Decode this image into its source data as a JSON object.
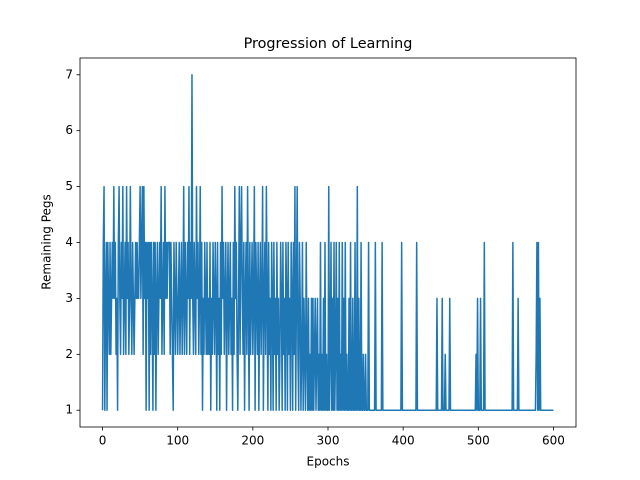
{
  "chart_data": {
    "type": "line",
    "title": "Progression of Learning",
    "x_label": "Epochs",
    "y_label": "Remaining Pegs",
    "xlim": [
      -30,
      630
    ],
    "ylim": [
      0.7,
      7.3
    ],
    "xticks": [
      0,
      100,
      200,
      300,
      400,
      500,
      600
    ],
    "yticks": [
      1,
      2,
      3,
      4,
      5,
      6,
      7
    ],
    "x": [
      0,
      1,
      2,
      3,
      4,
      5,
      6,
      7,
      8,
      9,
      10,
      11,
      12,
      13,
      14,
      15,
      16,
      17,
      18,
      19,
      20,
      21,
      22,
      23,
      24,
      25,
      26,
      27,
      28,
      29,
      30,
      31,
      32,
      33,
      34,
      35,
      36,
      37,
      38,
      39,
      40,
      41,
      42,
      43,
      44,
      45,
      46,
      47,
      48,
      49,
      50,
      51,
      52,
      53,
      54,
      55,
      56,
      57,
      58,
      59,
      60,
      61,
      62,
      63,
      64,
      65,
      66,
      67,
      68,
      69,
      70,
      71,
      72,
      73,
      74,
      75,
      76,
      77,
      78,
      79,
      80,
      81,
      82,
      83,
      84,
      85,
      86,
      87,
      88,
      89,
      90,
      91,
      92,
      93,
      94,
      95,
      96,
      97,
      98,
      99,
      100,
      101,
      102,
      103,
      104,
      105,
      106,
      107,
      108,
      109,
      110,
      111,
      112,
      113,
      114,
      115,
      116,
      117,
      118,
      119,
      120,
      121,
      122,
      123,
      124,
      125,
      126,
      127,
      128,
      129,
      130,
      131,
      132,
      133,
      134,
      135,
      136,
      137,
      138,
      139,
      140,
      141,
      142,
      143,
      144,
      145,
      146,
      147,
      148,
      149,
      150,
      151,
      152,
      153,
      154,
      155,
      156,
      157,
      158,
      159,
      160,
      161,
      162,
      163,
      164,
      165,
      166,
      167,
      168,
      169,
      170,
      171,
      172,
      173,
      174,
      175,
      176,
      177,
      178,
      179,
      180,
      181,
      182,
      183,
      184,
      185,
      186,
      187,
      188,
      189,
      190,
      191,
      192,
      193,
      194,
      195,
      196,
      197,
      198,
      199,
      200,
      201,
      202,
      203,
      204,
      205,
      206,
      207,
      208,
      209,
      210,
      211,
      212,
      213,
      214,
      215,
      216,
      217,
      218,
      219,
      220,
      221,
      222,
      223,
      224,
      225,
      226,
      227,
      228,
      229,
      230,
      231,
      232,
      233,
      234,
      235,
      236,
      237,
      238,
      239,
      240,
      241,
      242,
      243,
      244,
      245,
      246,
      247,
      248,
      249,
      250,
      251,
      252,
      253,
      254,
      255,
      256,
      257,
      258,
      259,
      260,
      261,
      262,
      263,
      264,
      265,
      266,
      267,
      268,
      269,
      270,
      271,
      272,
      273,
      274,
      275,
      276,
      277,
      278,
      279,
      280,
      281,
      282,
      283,
      284,
      285,
      286,
      287,
      288,
      289,
      290,
      291,
      292,
      293,
      294,
      295,
      296,
      297,
      298,
      299,
      300,
      301,
      302,
      303,
      304,
      305,
      306,
      307,
      308,
      309,
      310,
      311,
      312,
      313,
      314,
      315,
      316,
      317,
      318,
      319,
      320,
      321,
      322,
      323,
      324,
      325,
      326,
      327,
      328,
      329,
      330,
      331,
      332,
      333,
      334,
      335,
      336,
      337,
      338,
      339,
      340,
      341,
      342,
      343,
      344,
      345,
      346,
      347,
      348,
      349,
      350,
      351,
      352,
      353,
      354,
      355,
      356,
      357,
      358,
      359,
      360,
      361,
      362,
      363,
      364,
      365,
      366,
      367,
      368,
      369,
      370,
      371,
      372,
      373,
      374,
      375,
      376,
      377,
      378,
      379,
      380,
      381,
      382,
      383,
      384,
      385,
      386,
      387,
      388,
      389,
      390,
      391,
      392,
      393,
      394,
      395,
      396,
      397,
      398,
      399,
      400,
      401,
      402,
      403,
      404,
      405,
      406,
      407,
      408,
      409,
      410,
      411,
      412,
      413,
      414,
      415,
      416,
      417,
      418,
      419,
      420,
      421,
      422,
      423,
      424,
      425,
      426,
      427,
      428,
      429,
      430,
      431,
      432,
      433,
      434,
      435,
      436,
      437,
      438,
      439,
      440,
      441,
      442,
      443,
      444,
      445,
      446,
      447,
      448,
      449,
      450,
      451,
      452,
      453,
      454,
      455,
      456,
      457,
      458,
      459,
      460,
      461,
      462,
      463,
      464,
      465,
      466,
      467,
      468,
      469,
      470,
      471,
      472,
      473,
      474,
      475,
      476,
      477,
      478,
      479,
      480,
      481,
      482,
      483,
      484,
      485,
      486,
      487,
      488,
      489,
      490,
      491,
      492,
      493,
      494,
      495,
      496,
      497,
      498,
      499,
      500,
      501,
      502,
      503,
      504,
      505,
      506,
      507,
      508,
      509,
      510,
      511,
      512,
      513,
      514,
      515,
      516,
      517,
      518,
      519,
      520,
      521,
      522,
      523,
      524,
      525,
      526,
      527,
      528,
      529,
      530,
      531,
      532,
      533,
      534,
      535,
      536,
      537,
      538,
      539,
      540,
      541,
      542,
      543,
      544,
      545,
      546,
      547,
      548,
      549,
      550,
      551,
      552,
      553,
      554,
      555,
      556,
      557,
      558,
      559,
      560,
      561,
      562,
      563,
      564,
      565,
      566,
      567,
      568,
      569,
      570,
      571,
      572,
      573,
      574,
      575,
      576,
      577,
      578,
      579,
      580,
      581,
      582,
      583,
      584,
      585,
      586,
      587,
      588,
      589,
      590,
      591,
      592,
      593,
      594,
      595,
      596,
      597,
      598,
      599,
      600
    ],
    "series": [
      {
        "color": "#1f77b4",
        "values": [
          1,
          4,
          5,
          1,
          3,
          4,
          1,
          4,
          3,
          2,
          4,
          2,
          3,
          4,
          3,
          5,
          3,
          4,
          2,
          3,
          1,
          4,
          5,
          3,
          2,
          4,
          3,
          5,
          2,
          3,
          4,
          2,
          5,
          3,
          4,
          2,
          3,
          5,
          3,
          2,
          4,
          3,
          2,
          3,
          4,
          3,
          4,
          3,
          3,
          4,
          5,
          3,
          4,
          5,
          2,
          5,
          3,
          4,
          1,
          4,
          3,
          4,
          1,
          4,
          2,
          4,
          3,
          1,
          4,
          2,
          4,
          1,
          3,
          4,
          2,
          3,
          4,
          3,
          5,
          2,
          3,
          4,
          2,
          5,
          3,
          4,
          3,
          4,
          4,
          4,
          2,
          4,
          3,
          2,
          1,
          4,
          3,
          2,
          4,
          3,
          2,
          3,
          4,
          2,
          3,
          4,
          2,
          3,
          5,
          2,
          4,
          3,
          2,
          4,
          3,
          5,
          2,
          4,
          3,
          7,
          3,
          2,
          4,
          3,
          2,
          5,
          3,
          4,
          2,
          3,
          5,
          2,
          4,
          1,
          3,
          2,
          4,
          3,
          2,
          4,
          2,
          3,
          2,
          4,
          1,
          3,
          2,
          4,
          3,
          2,
          4,
          3,
          1,
          4,
          2,
          3,
          1,
          4,
          2,
          5,
          3,
          4,
          2,
          3,
          4,
          1,
          3,
          4,
          2,
          3,
          4,
          2,
          3,
          1,
          4,
          2,
          5,
          3,
          4,
          2,
          1,
          3,
          5,
          2,
          4,
          5,
          3,
          2,
          4,
          1,
          3,
          4,
          2,
          5,
          3,
          1,
          4,
          2,
          3,
          4,
          2,
          3,
          5,
          1,
          4,
          3,
          2,
          4,
          1,
          3,
          4,
          2,
          3,
          5,
          1,
          3,
          4,
          2,
          5,
          3,
          1,
          4,
          2,
          3,
          1,
          4,
          3,
          1,
          4,
          2,
          3,
          1,
          4,
          2,
          3,
          1,
          2,
          4,
          3,
          1,
          4,
          2,
          3,
          1,
          4,
          3,
          1,
          4,
          2,
          3,
          1,
          4,
          3,
          1,
          4,
          2,
          5,
          1,
          3,
          5,
          2,
          1,
          4,
          3,
          1,
          2,
          4,
          1,
          3,
          2,
          1,
          4,
          2,
          1,
          3,
          1,
          2,
          1,
          3,
          1,
          3,
          1,
          2,
          3,
          1,
          2,
          3,
          1,
          2,
          1,
          4,
          1,
          2,
          1,
          3,
          1,
          4,
          1,
          2,
          1,
          1,
          5,
          1,
          2,
          4,
          1,
          3,
          1,
          4,
          1,
          2,
          4,
          1,
          3,
          1,
          4,
          1,
          2,
          1,
          4,
          1,
          3,
          1,
          4,
          1,
          2,
          1,
          1,
          3,
          1,
          4,
          1,
          1,
          3,
          1,
          1,
          4,
          1,
          1,
          5,
          1,
          3,
          1,
          1,
          4,
          1,
          1,
          2,
          1,
          1,
          2,
          1,
          1,
          1,
          4,
          1,
          1,
          1,
          1,
          1,
          1,
          1,
          1,
          4,
          1,
          1,
          1,
          1,
          1,
          1,
          1,
          1,
          4,
          1,
          1,
          1,
          1,
          1,
          1,
          1,
          1,
          1,
          1,
          1,
          1,
          1,
          1,
          1,
          1,
          1,
          1,
          1,
          1,
          1,
          1,
          1,
          1,
          1,
          4,
          1,
          1,
          1,
          1,
          1,
          1,
          1,
          1,
          1,
          1,
          1,
          1,
          1,
          1,
          1,
          1,
          1,
          1,
          1,
          4,
          1,
          1,
          1,
          1,
          1,
          1,
          1,
          1,
          1,
          1,
          1,
          1,
          1,
          1,
          1,
          1,
          1,
          1,
          1,
          1,
          1,
          1,
          1,
          1,
          1,
          1,
          3,
          1,
          1,
          1,
          1,
          1,
          1,
          3,
          1,
          1,
          1,
          2,
          1,
          1,
          1,
          1,
          1,
          3,
          1,
          1,
          1,
          1,
          1,
          1,
          1,
          1,
          1,
          1,
          1,
          1,
          1,
          1,
          1,
          1,
          1,
          1,
          1,
          1,
          1,
          1,
          1,
          1,
          1,
          1,
          1,
          1,
          1,
          1,
          1,
          1,
          1,
          1,
          2,
          1,
          3,
          1,
          1,
          1,
          3,
          1,
          1,
          1,
          1,
          4,
          1,
          1,
          1,
          1,
          1,
          1,
          1,
          1,
          1,
          1,
          1,
          1,
          1,
          1,
          1,
          1,
          1,
          1,
          1,
          1,
          1,
          1,
          1,
          1,
          1,
          1,
          1,
          1,
          1,
          1,
          1,
          1,
          1,
          1,
          1,
          1,
          1,
          4,
          1,
          1,
          1,
          1,
          1,
          1,
          3,
          1,
          1,
          1,
          1,
          1,
          1,
          1,
          1,
          1,
          1,
          1,
          1,
          1,
          1,
          1,
          1,
          1,
          1,
          1,
          1,
          1,
          1,
          1,
          2,
          4,
          1,
          4,
          1,
          3,
          1,
          1,
          1,
          1,
          1,
          1,
          1,
          1,
          1,
          1,
          1,
          1,
          1,
          1,
          1,
          1,
          1,
          1
        ]
      }
    ]
  }
}
